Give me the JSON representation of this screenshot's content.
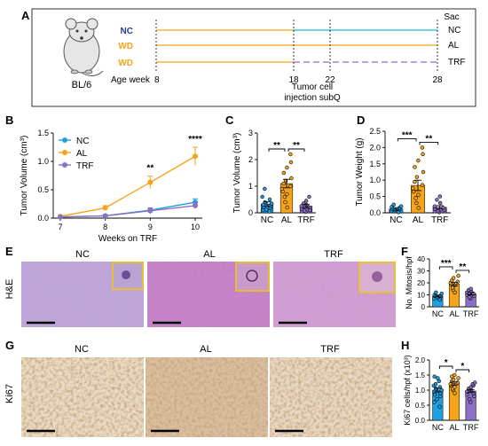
{
  "panels": {
    "A": "A",
    "B": "B",
    "C": "C",
    "D": "D",
    "E": "E",
    "F": "F",
    "G": "G",
    "H": "H"
  },
  "colors": {
    "NC": "#1e9fe0",
    "AL": "#f5a31a",
    "TRF": "#8a6fc4",
    "NC_text": "#2b3a9a",
    "WD_text": "#f5a31a",
    "cyan_line": "#3cc6d6"
  },
  "schematic": {
    "strain": "BL/6",
    "age_week_label": "Age week",
    "age_start": "8",
    "rows": [
      {
        "diet": "NC",
        "end": "NC",
        "dashed_after": false,
        "cyan_after": true
      },
      {
        "diet": "WD",
        "end": "AL",
        "dashed_after": false,
        "cyan_after": false
      },
      {
        "diet": "WD",
        "end": "TRF",
        "dashed_after": true,
        "cyan_after": false
      }
    ],
    "week_18": "18",
    "week_22": "22",
    "week_28": "28",
    "sac_label": "Sac",
    "injection_line1": "Tumor cell",
    "injection_line2": "injection subQ"
  },
  "chart_data": [
    {
      "panel": "B",
      "type": "line",
      "x": [
        7,
        8,
        9,
        10
      ],
      "xlabel": "Weeks on TRF",
      "ylabel": "Tumor Volume (cm³)",
      "ylim": [
        0,
        1.5
      ],
      "yticks": [
        "0.0",
        "0.5",
        "1.0",
        "1.5"
      ],
      "xticks": [
        "7",
        "8",
        "9",
        "10"
      ],
      "legend": "top-left",
      "series": [
        {
          "name": "NC",
          "values": [
            0.02,
            0.04,
            0.14,
            0.28
          ],
          "err": [
            0.01,
            0.02,
            0.04,
            0.06
          ]
        },
        {
          "name": "AL",
          "values": [
            0.03,
            0.18,
            0.63,
            1.09
          ],
          "err": [
            0.01,
            0.04,
            0.11,
            0.16
          ]
        },
        {
          "name": "TRF",
          "values": [
            0.02,
            0.04,
            0.13,
            0.22
          ],
          "err": [
            0.01,
            0.02,
            0.05,
            0.05
          ]
        }
      ],
      "annotations": [
        {
          "x": 9,
          "text": "**"
        },
        {
          "x": 10,
          "text": "****"
        }
      ]
    },
    {
      "panel": "C",
      "type": "bar",
      "categories": [
        "NC",
        "AL",
        "TRF"
      ],
      "values": [
        0.33,
        1.1,
        0.25
      ],
      "err": [
        0.08,
        0.16,
        0.06
      ],
      "ylabel": "Tumor Volume (cm³)",
      "ylim": [
        0,
        3
      ],
      "yticks": [
        "0",
        "1",
        "2",
        "3"
      ],
      "points": [
        [
          0.05,
          0.1,
          0.12,
          0.18,
          0.22,
          0.25,
          0.3,
          0.35,
          0.4,
          0.5,
          0.6,
          0.9
        ],
        [
          0.2,
          0.4,
          0.6,
          0.7,
          0.8,
          0.9,
          1.0,
          1.1,
          1.2,
          1.3,
          1.5,
          1.7,
          1.9,
          2.2
        ],
        [
          0.03,
          0.08,
          0.1,
          0.15,
          0.2,
          0.25,
          0.3,
          0.35,
          0.45,
          0.6
        ]
      ],
      "significance": [
        {
          "from": 0,
          "to": 1,
          "text": "**"
        },
        {
          "from": 1,
          "to": 2,
          "text": "**"
        }
      ]
    },
    {
      "panel": "D",
      "type": "bar",
      "categories": [
        "NC",
        "AL",
        "TRF"
      ],
      "values": [
        0.12,
        0.84,
        0.17
      ],
      "err": [
        0.04,
        0.16,
        0.05
      ],
      "ylabel": "Tumor Weight (g)",
      "ylim": [
        0,
        2.5
      ],
      "yticks": [
        "0.0",
        "0.5",
        "1.0",
        "1.5",
        "2.0",
        "2.5"
      ],
      "points": [
        [
          0.02,
          0.05,
          0.08,
          0.1,
          0.12,
          0.15,
          0.18,
          0.2,
          0.25
        ],
        [
          0.15,
          0.3,
          0.45,
          0.55,
          0.65,
          0.75,
          0.85,
          0.95,
          1.1,
          1.25,
          1.4,
          1.6,
          1.8,
          2.0
        ],
        [
          0.02,
          0.05,
          0.08,
          0.12,
          0.15,
          0.2,
          0.3,
          0.4,
          0.5
        ]
      ],
      "significance": [
        {
          "from": 0,
          "to": 1,
          "text": "***"
        },
        {
          "from": 1,
          "to": 2,
          "text": "**"
        }
      ]
    },
    {
      "panel": "F",
      "type": "bar",
      "categories": [
        "NC",
        "AL",
        "TRF"
      ],
      "values": [
        9,
        19,
        11
      ],
      "err": [
        0.8,
        1.5,
        1.0
      ],
      "ylabel": "No. Mitosis/hpf",
      "ylim": [
        0,
        40
      ],
      "yticks": [
        "0",
        "10",
        "20",
        "30",
        "40"
      ],
      "points": [
        [
          6,
          7,
          8,
          8,
          9,
          9,
          10,
          11,
          12
        ],
        [
          12,
          14,
          16,
          18,
          19,
          20,
          21,
          22,
          24,
          26
        ],
        [
          7,
          8,
          9,
          10,
          11,
          12,
          13,
          14,
          15
        ]
      ],
      "significance": [
        {
          "from": 0,
          "to": 1,
          "text": "***"
        },
        {
          "from": 1,
          "to": 2,
          "text": "**"
        }
      ]
    },
    {
      "panel": "H",
      "type": "bar",
      "categories": [
        "NC",
        "AL",
        "TRF"
      ],
      "values": [
        1.0,
        1.22,
        0.97
      ],
      "err": [
        0.06,
        0.05,
        0.05
      ],
      "ylabel": "Ki67 cells/hpf (x10³)",
      "ylim": [
        0,
        2.0
      ],
      "yticks": [
        "0.0",
        "0.5",
        "1.0",
        "1.5",
        "2.0"
      ],
      "points": [
        [
          0.45,
          0.6,
          0.7,
          0.8,
          0.85,
          0.9,
          0.95,
          1.0,
          1.05,
          1.1,
          1.15,
          1.2,
          1.3,
          1.4,
          1.45
        ],
        [
          0.9,
          1.0,
          1.05,
          1.1,
          1.15,
          1.2,
          1.25,
          1.3,
          1.35,
          1.4,
          1.45,
          1.5
        ],
        [
          0.6,
          0.7,
          0.8,
          0.85,
          0.9,
          0.95,
          1.0,
          1.05,
          1.1,
          1.15,
          1.2,
          1.25
        ]
      ],
      "significance": [
        {
          "from": 0,
          "to": 1,
          "text": "*"
        },
        {
          "from": 1,
          "to": 2,
          "text": "*"
        }
      ]
    }
  ],
  "micrographs": {
    "E": {
      "row_label": "H&E",
      "titles": [
        "NC",
        "AL",
        "TRF"
      ]
    },
    "G": {
      "row_label": "Ki67",
      "titles": [
        "NC",
        "AL",
        "TRF"
      ]
    }
  }
}
